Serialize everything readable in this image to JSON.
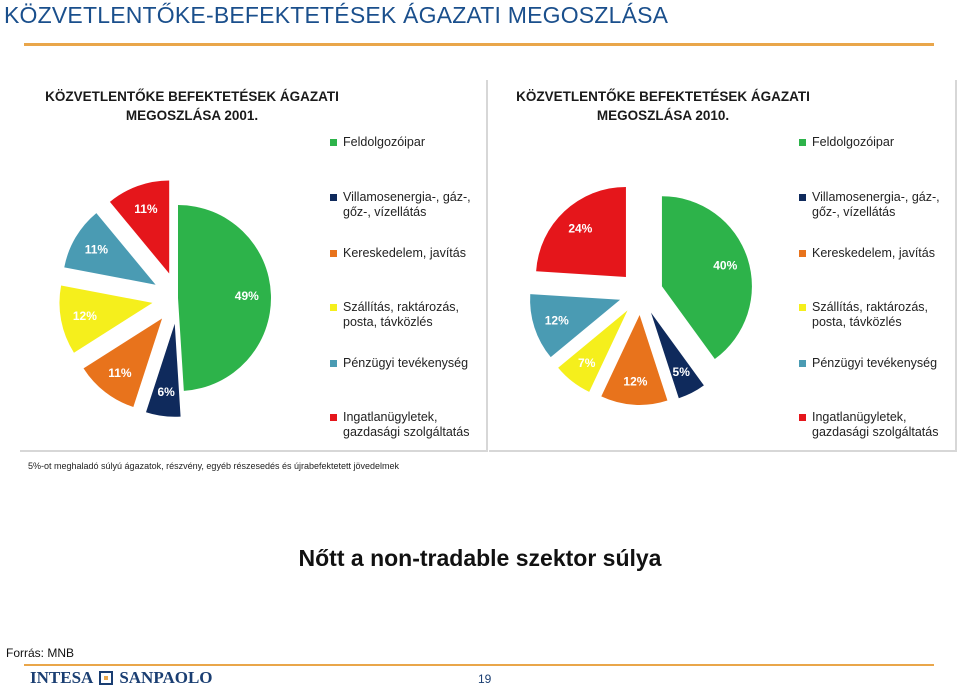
{
  "slide": {
    "title": "KÖZVETLENTŐKE-BEFEKTETÉSEK  ÁGAZATI MEGOSZLÁSA",
    "footnote": "5%-ot meghaladó súlyú ágazatok,  részvény,  egyéb részesedés és újrabefektetett jövedelmek",
    "headline": "Nőtt a non-tradable szektor súlya",
    "source": "Forrás: MNB",
    "logo_left": "INTESA",
    "logo_right": "SANPAOLO",
    "page_number": "19"
  },
  "colors": {
    "feldolgozoipar": "#2db34a",
    "villamosenergia": "#0f2a5c",
    "kereskedelem": "#e8731c",
    "szallitas": "#f5ef1c",
    "penzugyi": "#4a9bb3",
    "ingatlan": "#e5161b",
    "title": "#1a4f8c",
    "rule": "#e9a64a"
  },
  "chart_data": [
    {
      "type": "pie",
      "title": "KÖZVETLENTŐKE BEFEKTETÉSEK ÁGAZATI MEGOSZLÁSA 2001.",
      "title_lines": [
        "KÖZVETLENTŐKE BEFEKTETÉSEK ÁGAZATI",
        "MEGOSZLÁSA 2001."
      ],
      "categories": [
        "Feldolgozóipar",
        "Villamosenergia-, gáz-, gőz-, vízellátás",
        "Kereskedelem, javítás",
        "Szállítás, raktározás, posta, távközlés",
        "Pénzügyi tevékenység",
        "Ingatlanügyletek, gazdasági szolgáltatás"
      ],
      "values": [
        49,
        6,
        11,
        12,
        11,
        11
      ],
      "labels": [
        "49%",
        "6%",
        "11%",
        "12%",
        "11%",
        "11%"
      ],
      "legend": "right"
    },
    {
      "type": "pie",
      "title": "KÖZVETLENTŐKE BEFEKTETÉSEK ÁGAZATI MEGOSZLÁSA 2010.",
      "title_lines": [
        "KÖZVETLENTŐKE BEFEKTETÉSEK ÁGAZATI",
        "MEGOSZLÁSA 2010."
      ],
      "categories": [
        "Feldolgozóipar",
        "Villamosenergia-, gáz-, gőz-, vízellátás",
        "Kereskedelem, javítás",
        "Szállítás, raktározás, posta, távközlés",
        "Pénzügyi tevékenység",
        "Ingatlanügyletek, gazdasági szolgáltatás"
      ],
      "values": [
        40,
        5,
        12,
        7,
        12,
        24
      ],
      "labels": [
        "40%",
        "5%",
        "12%",
        "7%",
        "12%",
        "24%"
      ],
      "legend": "right"
    }
  ],
  "legend": {
    "items": [
      {
        "lines": [
          "Feldolgozóipar"
        ],
        "color_key": "feldolgozoipar"
      },
      {
        "lines": [
          "Villamosenergia-, gáz-,",
          "gőz-, vízellátás"
        ],
        "color_key": "villamosenergia"
      },
      {
        "lines": [
          "Kereskedelem, javítás"
        ],
        "color_key": "kereskedelem"
      },
      {
        "lines": [
          "Szállítás, raktározás,",
          "posta, távközlés"
        ],
        "color_key": "szallitas"
      },
      {
        "lines": [
          "Pénzügyi tevékenység"
        ],
        "color_key": "penzugyi"
      },
      {
        "lines": [
          "Ingatlanügyletek,",
          "gazdasági szolgáltatás"
        ],
        "color_key": "ingatlan"
      }
    ]
  }
}
